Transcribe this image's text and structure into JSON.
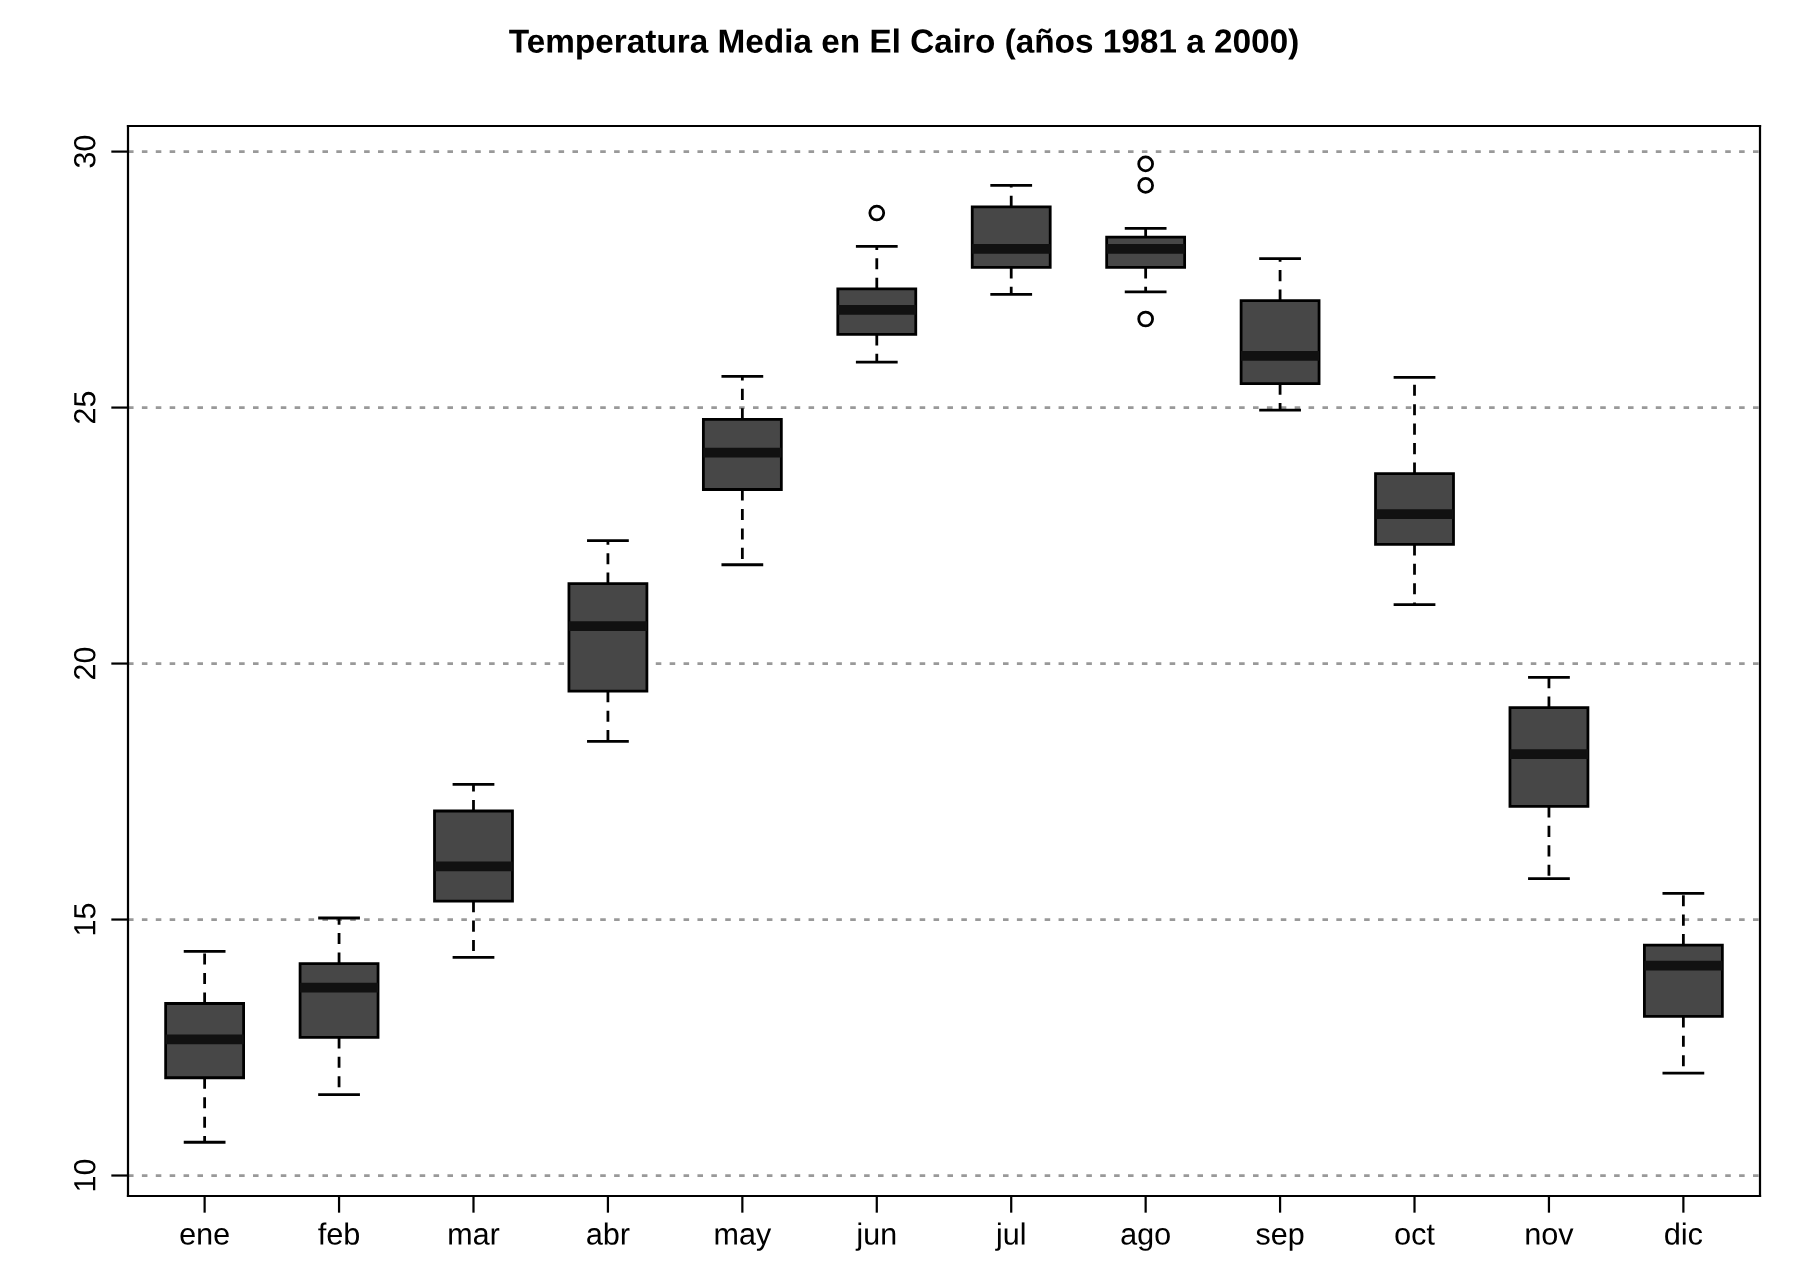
{
  "chart_data": {
    "type": "box",
    "title": "Temperatura Media en El Cairo (años 1981 a 2000)",
    "categories": [
      "ene",
      "feb",
      "mar",
      "abr",
      "may",
      "jun",
      "jul",
      "ago",
      "sep",
      "oct",
      "nov",
      "dic"
    ],
    "color": "#474747",
    "boxes": [
      {
        "low": 10.65,
        "q1": 11.91,
        "median": 12.66,
        "q3": 13.36,
        "high": 14.38
      },
      {
        "low": 11.58,
        "q1": 12.7,
        "median": 13.67,
        "q3": 14.14,
        "high": 15.03
      },
      {
        "low": 14.26,
        "q1": 15.36,
        "median": 16.04,
        "q3": 17.12,
        "high": 17.64
      },
      {
        "low": 18.48,
        "q1": 19.46,
        "median": 20.73,
        "q3": 21.56,
        "high": 22.4
      },
      {
        "low": 21.93,
        "q1": 23.4,
        "median": 24.12,
        "q3": 24.77,
        "high": 25.61
      },
      {
        "low": 25.89,
        "q1": 26.43,
        "median": 26.91,
        "q3": 27.32,
        "high": 28.15,
        "outliers": [
          28.8
        ]
      },
      {
        "low": 27.21,
        "q1": 27.74,
        "median": 28.1,
        "q3": 28.92,
        "high": 29.34
      },
      {
        "low": 27.26,
        "q1": 27.74,
        "median": 28.1,
        "q3": 28.33,
        "high": 28.5,
        "outliers": [
          29.76,
          29.34,
          26.73
        ]
      },
      {
        "low": 24.95,
        "q1": 25.47,
        "median": 26.01,
        "q3": 27.09,
        "high": 27.91
      },
      {
        "low": 21.15,
        "q1": 22.33,
        "median": 22.92,
        "q3": 23.71,
        "high": 25.59
      },
      {
        "low": 15.8,
        "q1": 17.21,
        "median": 18.23,
        "q3": 19.14,
        "high": 19.73
      },
      {
        "low": 12.0,
        "q1": 13.11,
        "median": 14.1,
        "q3": 14.5,
        "high": 15.51
      }
    ],
    "ylim": [
      9.6,
      30.5
    ],
    "yticks": [
      10,
      15,
      20,
      25,
      30
    ],
    "grid": "y"
  }
}
